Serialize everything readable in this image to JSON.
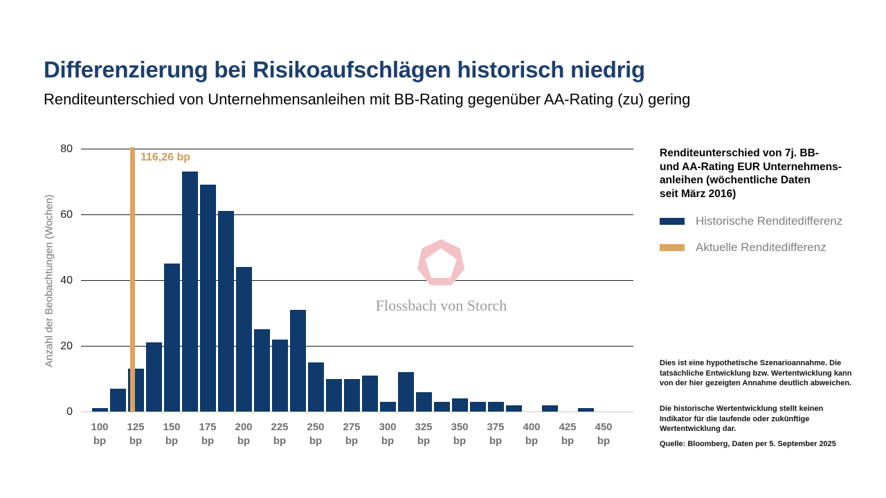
{
  "header": {
    "title": "Differenzierung bei Risikoaufschlägen historisch niedrig",
    "subtitle": "Renditeunterschied von Unternehmensanleihen mit BB-Rating gegenüber AA-Rating (zu) gering"
  },
  "chart_data": {
    "type": "bar",
    "title": "",
    "xlabel": "",
    "ylabel": "Anzahl der Beobachtungen (Wochen)",
    "ylim": [
      0,
      80
    ],
    "y_ticks": [
      0,
      20,
      40,
      60,
      80
    ],
    "grid": "horizontal",
    "bin_width_bp": 12.5,
    "bin_centers_bp": [
      100,
      112.5,
      125,
      137.5,
      150,
      162.5,
      175,
      187.5,
      200,
      212.5,
      225,
      237.5,
      250,
      262.5,
      275,
      287.5,
      300,
      312.5,
      325,
      337.5,
      350,
      362.5,
      375,
      387.5,
      400,
      412.5,
      425,
      437.5
    ],
    "values": [
      1,
      7,
      13,
      21,
      45,
      73,
      69,
      61,
      44,
      25,
      22,
      31,
      15,
      10,
      10,
      11,
      3,
      12,
      6,
      3,
      4,
      3,
      3,
      2,
      0,
      2,
      0,
      1
    ],
    "x_tick_labels": [
      "100",
      "125",
      "150",
      "175",
      "200",
      "225",
      "250",
      "275",
      "300",
      "325",
      "350",
      "375",
      "400",
      "425",
      "450"
    ],
    "x_tick_unit": "bp",
    "annotation": {
      "label": "116,26 bp",
      "value_bp": 116.26
    },
    "colors": {
      "bars": "#0f3a6b",
      "current_line": "#dba45f",
      "annotation_text": "#cf9b53",
      "gridline": "#1a1a1a",
      "baseline": "#c9c9c9"
    }
  },
  "legend": {
    "description_lines": [
      "Renditeunterschied von 7j. BB-",
      "und AA-Rating EUR Unternehmens-",
      "anleihen (wöchentliche Daten",
      "seit März 2016)"
    ],
    "items": [
      {
        "label": "Historische Renditedifferenz",
        "color": "#0f3a6b"
      },
      {
        "label": "Aktuelle Renditedifferenz",
        "color": "#dba45f"
      }
    ]
  },
  "watermark": {
    "brand": "Flossbach von Storch",
    "logo_color": "#f2c2c6"
  },
  "footnotes": {
    "para1": "Dies ist eine hypothetische Szenarioannahme. Die tatsächliche Entwicklung bzw. Wertentwicklung kann von der hier gezeigten Annahme deutlich abweichen.",
    "para2": "Die historische Wertentwicklung stellt keinen Indikator für die laufende oder zukünftige Wertentwicklung dar.",
    "source": "Quelle: Bloomberg, Daten per 5. September 2025"
  }
}
